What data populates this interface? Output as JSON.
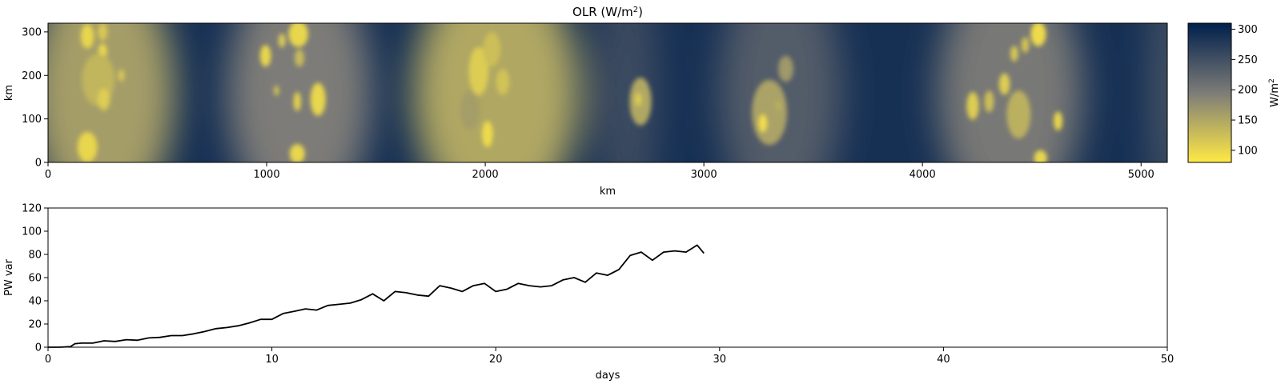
{
  "colors": {
    "cmap_low": "#ffe945",
    "cmap_mid": "#7d7c78",
    "cmap_high": "#00204c",
    "line": "#000000"
  },
  "chart_data": [
    {
      "type": "heatmap",
      "title_main": "OLR (W/m",
      "title_sup": "2",
      "title_end": ")",
      "xlabel": "km",
      "ylabel": "km",
      "xlim": [
        0,
        5120
      ],
      "ylim": [
        0,
        320
      ],
      "xticks": [
        "0",
        "1000",
        "2000",
        "3000",
        "4000",
        "5000"
      ],
      "xtick_values": [
        0,
        1000,
        2000,
        3000,
        4000,
        5000
      ],
      "yticks": [
        "0",
        "100",
        "200",
        "300"
      ],
      "ytick_values": [
        0,
        100,
        200,
        300
      ],
      "colorbar": {
        "label_main": "W/m",
        "label_sup": "2",
        "range": [
          80,
          310
        ],
        "ticks": [
          "100",
          "150",
          "200",
          "250",
          "300"
        ],
        "tick_values": [
          100,
          150,
          200,
          250,
          300
        ]
      },
      "background_olr": 290,
      "bands": [
        {
          "x": 250,
          "halfwidth": 330,
          "olr": 160
        },
        {
          "x": 1150,
          "halfwidth": 330,
          "olr": 195
        },
        {
          "x": 2050,
          "halfwidth": 380,
          "olr": 150
        },
        {
          "x": 2650,
          "halfwidth": 140,
          "olr": 255
        },
        {
          "x": 3350,
          "halfwidth": 280,
          "olr": 235
        },
        {
          "x": 4400,
          "halfwidth": 330,
          "olr": 200
        },
        {
          "x": 5120,
          "halfwidth": 60,
          "olr": 230
        }
      ],
      "cells": [
        {
          "x": 180,
          "y": 290,
          "rx": 30,
          "ry": 28,
          "olr": 100
        },
        {
          "x": 250,
          "y": 300,
          "rx": 22,
          "ry": 20,
          "olr": 115
        },
        {
          "x": 250,
          "y": 255,
          "rx": 20,
          "ry": 18,
          "olr": 100
        },
        {
          "x": 230,
          "y": 190,
          "rx": 75,
          "ry": 60,
          "olr": 135
        },
        {
          "x": 255,
          "y": 145,
          "rx": 28,
          "ry": 25,
          "olr": 110
        },
        {
          "x": 335,
          "y": 200,
          "rx": 15,
          "ry": 14,
          "olr": 115
        },
        {
          "x": 180,
          "y": 35,
          "rx": 45,
          "ry": 35,
          "olr": 100
        },
        {
          "x": 995,
          "y": 245,
          "rx": 25,
          "ry": 25,
          "olr": 100
        },
        {
          "x": 1070,
          "y": 280,
          "rx": 16,
          "ry": 16,
          "olr": 110
        },
        {
          "x": 1145,
          "y": 295,
          "rx": 45,
          "ry": 30,
          "olr": 100
        },
        {
          "x": 1150,
          "y": 240,
          "rx": 22,
          "ry": 20,
          "olr": 130
        },
        {
          "x": 1235,
          "y": 145,
          "rx": 35,
          "ry": 38,
          "olr": 100
        },
        {
          "x": 1140,
          "y": 140,
          "rx": 17,
          "ry": 22,
          "olr": 105
        },
        {
          "x": 1140,
          "y": 20,
          "rx": 35,
          "ry": 22,
          "olr": 100
        },
        {
          "x": 1045,
          "y": 165,
          "rx": 12,
          "ry": 12,
          "olr": 120
        },
        {
          "x": 1970,
          "y": 210,
          "rx": 45,
          "ry": 55,
          "olr": 110
        },
        {
          "x": 2030,
          "y": 260,
          "rx": 40,
          "ry": 40,
          "olr": 125
        },
        {
          "x": 2080,
          "y": 185,
          "rx": 30,
          "ry": 30,
          "olr": 120
        },
        {
          "x": 2010,
          "y": 65,
          "rx": 25,
          "ry": 30,
          "olr": 95
        },
        {
          "x": 1930,
          "y": 120,
          "rx": 45,
          "ry": 45,
          "olr": 160
        },
        {
          "x": 2710,
          "y": 140,
          "rx": 50,
          "ry": 55,
          "olr": 150
        },
        {
          "x": 2700,
          "y": 145,
          "rx": 15,
          "ry": 15,
          "olr": 110
        },
        {
          "x": 3300,
          "y": 115,
          "rx": 80,
          "ry": 75,
          "olr": 155
        },
        {
          "x": 3270,
          "y": 90,
          "rx": 18,
          "ry": 20,
          "olr": 90
        },
        {
          "x": 3340,
          "y": 130,
          "rx": 12,
          "ry": 12,
          "olr": 140
        },
        {
          "x": 3375,
          "y": 215,
          "rx": 35,
          "ry": 30,
          "olr": 165
        },
        {
          "x": 4230,
          "y": 130,
          "rx": 28,
          "ry": 32,
          "olr": 110
        },
        {
          "x": 4305,
          "y": 140,
          "rx": 22,
          "ry": 25,
          "olr": 125
        },
        {
          "x": 4375,
          "y": 180,
          "rx": 25,
          "ry": 25,
          "olr": 110
        },
        {
          "x": 4440,
          "y": 110,
          "rx": 55,
          "ry": 55,
          "olr": 140
        },
        {
          "x": 4530,
          "y": 295,
          "rx": 35,
          "ry": 28,
          "olr": 95
        },
        {
          "x": 4470,
          "y": 270,
          "rx": 18,
          "ry": 18,
          "olr": 120
        },
        {
          "x": 4420,
          "y": 250,
          "rx": 18,
          "ry": 18,
          "olr": 115
        },
        {
          "x": 4620,
          "y": 95,
          "rx": 20,
          "ry": 22,
          "olr": 100
        },
        {
          "x": 4540,
          "y": 10,
          "rx": 30,
          "ry": 18,
          "olr": 100
        }
      ]
    },
    {
      "type": "line",
      "xlabel": "days",
      "ylabel": "PW var",
      "xlim": [
        0,
        50
      ],
      "ylim": [
        0,
        120
      ],
      "xticks": [
        "0",
        "10",
        "20",
        "30",
        "40",
        "50"
      ],
      "xtick_values": [
        0,
        10,
        20,
        30,
        40,
        50
      ],
      "yticks": [
        "0",
        "20",
        "40",
        "60",
        "80",
        "100",
        "120"
      ],
      "ytick_values": [
        0,
        20,
        40,
        60,
        80,
        100,
        120
      ],
      "series": [
        {
          "x": [
            0,
            0.5,
            1.0,
            1.2,
            1.5,
            2.0,
            2.5,
            3.0,
            3.5,
            4.0,
            4.5,
            5.0,
            5.5,
            6.0,
            6.5,
            7.0,
            7.5,
            8.0,
            8.5,
            9.0,
            9.5,
            10.0,
            10.5,
            11.0,
            11.5,
            12.0,
            12.5,
            13.0,
            13.5,
            14.0,
            14.5,
            15.0,
            15.5,
            16.0,
            16.5,
            17.0,
            17.5,
            18.0,
            18.5,
            19.0,
            19.5,
            20.0,
            20.5,
            21.0,
            21.5,
            22.0,
            22.5,
            23.0,
            23.5,
            24.0,
            24.5,
            25.0,
            25.5,
            26.0,
            26.5,
            27.0,
            27.5,
            28.0,
            28.5,
            29.0,
            29.3
          ],
          "y": [
            0,
            0,
            0.5,
            3,
            3.5,
            3.5,
            5.5,
            5,
            6.5,
            6,
            8,
            8.5,
            10,
            10,
            11.5,
            13.5,
            16,
            17,
            18.5,
            21,
            24,
            24,
            29,
            31,
            33,
            32,
            36,
            37,
            38,
            41,
            46,
            40,
            48,
            47,
            45,
            44,
            53,
            51,
            48,
            53,
            55,
            48,
            50,
            55,
            53,
            52,
            53,
            58,
            60,
            56,
            64,
            62,
            67,
            79,
            82,
            75,
            82,
            83,
            82,
            88,
            81
          ]
        }
      ]
    }
  ]
}
